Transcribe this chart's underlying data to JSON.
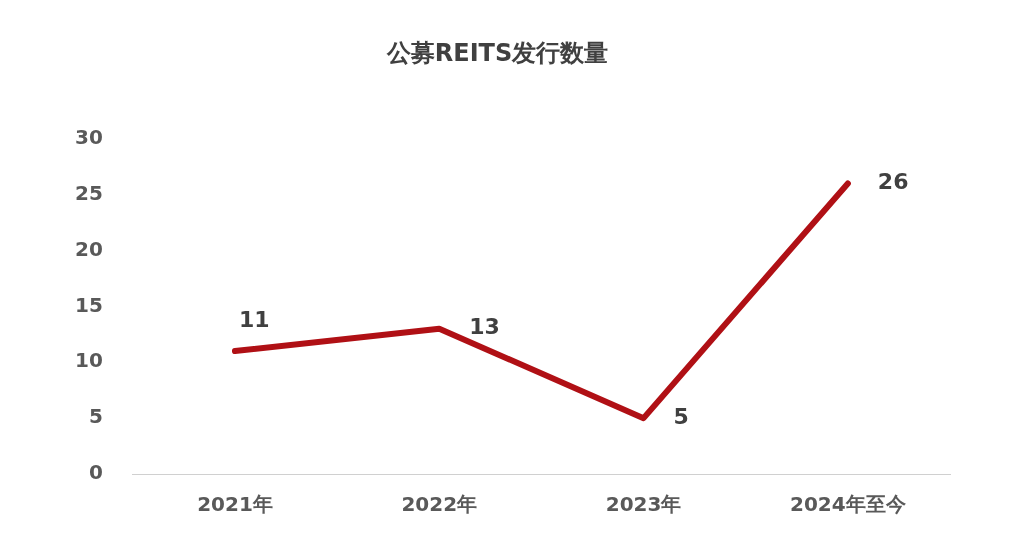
{
  "chart_data": {
    "type": "line",
    "title": "公募REITS发行数量",
    "categories": [
      "2021年",
      "2022年",
      "2023年",
      "2024年至今"
    ],
    "series": [
      {
        "color": "#b01015",
        "values": [
          11,
          13,
          5,
          26
        ]
      }
    ],
    "ylim": [
      0,
      30
    ],
    "yticks": [
      0,
      5,
      10,
      15,
      20,
      25,
      30
    ],
    "grid": false,
    "legend": false,
    "data_labels": true,
    "marker": "none"
  }
}
